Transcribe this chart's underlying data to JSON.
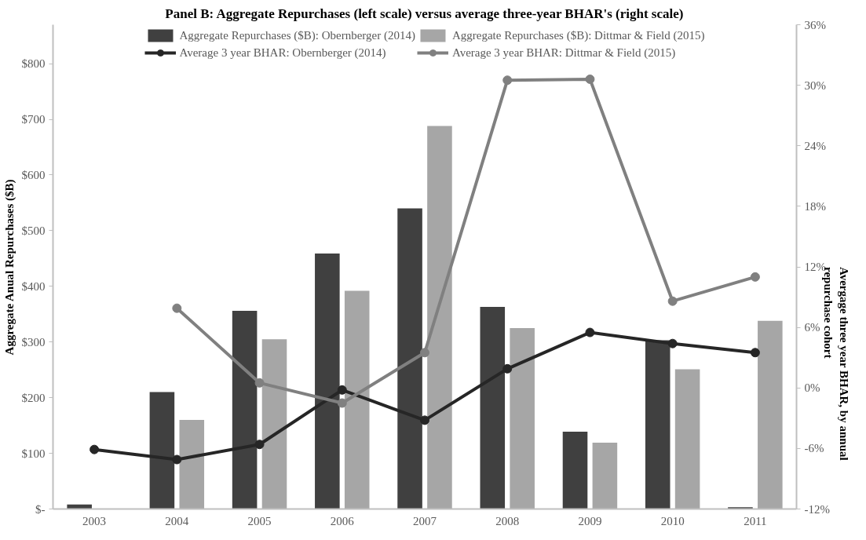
{
  "chart_data": {
    "type": "bar",
    "title": "Panel B: Aggregate Repurchases (left scale) versus average three-year BHAR's (right scale)",
    "ylabel": "Aggregate Anual Repurchases ($B)",
    "y2label": "Avergage three year BHAR, by annual\nrepurchase cohort",
    "categories": [
      "2003",
      "2004",
      "2005",
      "2006",
      "2007",
      "2008",
      "2009",
      "2010",
      "2011"
    ],
    "series": [
      {
        "name": "Aggregate Repurchases ($B): Obernberger (2014)",
        "color": "#404040",
        "values": [
          8,
          210,
          356,
          459,
          540,
          363,
          139,
          303,
          3
        ]
      },
      {
        "name": "Aggregate Repurchases ($B): Dittmar & Field (2015)",
        "color": "#a6a6a6",
        "values": [
          null,
          160,
          305,
          392,
          688,
          325,
          119,
          251,
          338
        ]
      },
      {
        "name": "Average 3 year BHAR: Obernberger (2014)",
        "type": "line",
        "axis": "y2",
        "marker": "circle",
        "color": "#262626",
        "values": [
          -6.1,
          -7.1,
          -5.6,
          -0.2,
          -3.2,
          1.9,
          5.5,
          4.4,
          3.5
        ]
      },
      {
        "name": "Average 3 year BHAR: Dittmar & Field (2015)",
        "type": "line",
        "axis": "y2",
        "marker": "circle",
        "color": "#808080",
        "values": [
          null,
          7.9,
          0.5,
          -1.5,
          3.5,
          30.5,
          30.6,
          8.6,
          11.0
        ]
      }
    ],
    "ylim": [
      0,
      870
    ],
    "yticks": [
      {
        "value": 0,
        "label": "$-"
      },
      {
        "value": 100,
        "label": "$100"
      },
      {
        "value": 200,
        "label": "$200"
      },
      {
        "value": 300,
        "label": "$300"
      },
      {
        "value": 400,
        "label": "$400"
      },
      {
        "value": 500,
        "label": "$500"
      },
      {
        "value": 600,
        "label": "$600"
      },
      {
        "value": 700,
        "label": "$700"
      },
      {
        "value": 800,
        "label": "$800"
      }
    ],
    "y2lim": [
      -12,
      36
    ],
    "y2ticks": [
      {
        "value": -12,
        "label": "-12%"
      },
      {
        "value": -6,
        "label": "-6%"
      },
      {
        "value": 0,
        "label": "0%"
      },
      {
        "value": 6,
        "label": "6%"
      },
      {
        "value": 12,
        "label": "12%"
      },
      {
        "value": 18,
        "label": "18%"
      },
      {
        "value": 24,
        "label": "24%"
      },
      {
        "value": 30,
        "label": "30%"
      },
      {
        "value": 36,
        "label": "36%"
      }
    ],
    "legend": "top",
    "grid": false
  }
}
